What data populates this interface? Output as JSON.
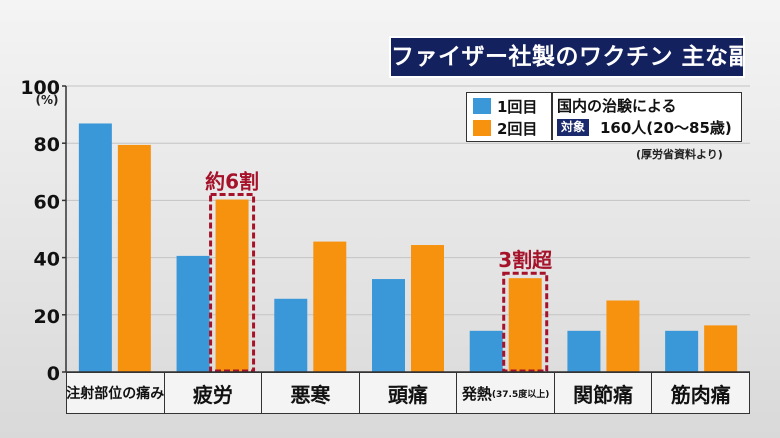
{
  "title": "ファイザー社製のワクチン 主な副反応",
  "legend": {
    "series1": "1回目",
    "series2": "2回目",
    "trial_label": "国内の治験による",
    "target_tag": "対象",
    "target_count": "160人(20〜85歳)"
  },
  "source": "(厚労省資料より)",
  "colors": {
    "series1": "#3a97d8",
    "series2": "#f7920f",
    "title_bg": "#13215e",
    "highlight": "#a5122a"
  },
  "chart_data": {
    "type": "bar",
    "categories": [
      "注射部位の痛み",
      "疲労",
      "悪寒",
      "頭痛",
      "発熱(37.5度以上)",
      "関節痛",
      "筋肉痛"
    ],
    "series": [
      {
        "name": "1回目",
        "values": [
          86.9,
          40.6,
          25.6,
          32.5,
          14.4,
          14.4,
          14.4
        ]
      },
      {
        "name": "2回目",
        "values": [
          79.4,
          60.3,
          45.6,
          44.4,
          32.8,
          25.0,
          16.3
        ]
      }
    ],
    "ylim": [
      0,
      100
    ],
    "yticks": [
      0,
      20,
      40,
      60,
      80,
      100
    ],
    "yunit": "(%)",
    "grid": true,
    "annotations": [
      {
        "text": "約6割",
        "category_index": 1,
        "series_index": 1
      },
      {
        "text": "3割超",
        "category_index": 4,
        "series_index": 1
      }
    ]
  }
}
